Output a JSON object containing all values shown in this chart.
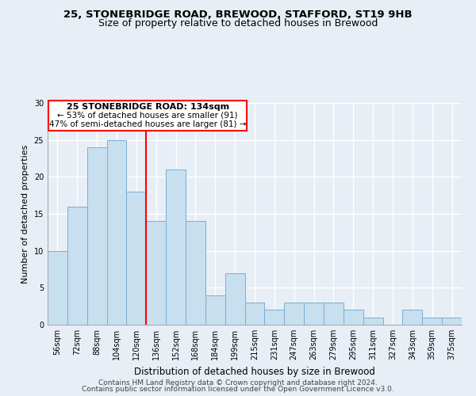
{
  "title1": "25, STONEBRIDGE ROAD, BREWOOD, STAFFORD, ST19 9HB",
  "title2": "Size of property relative to detached houses in Brewood",
  "xlabel": "Distribution of detached houses by size in Brewood",
  "ylabel": "Number of detached properties",
  "bar_color": "#c8dff0",
  "bar_edge_color": "#7aaed0",
  "background_color": "#e8eef5",
  "grid_color": "#ffffff",
  "categories": [
    "56sqm",
    "72sqm",
    "88sqm",
    "104sqm",
    "120sqm",
    "136sqm",
    "152sqm",
    "168sqm",
    "184sqm",
    "199sqm",
    "215sqm",
    "231sqm",
    "247sqm",
    "263sqm",
    "279sqm",
    "295sqm",
    "311sqm",
    "327sqm",
    "343sqm",
    "359sqm",
    "375sqm"
  ],
  "values": [
    10,
    16,
    24,
    25,
    18,
    14,
    21,
    14,
    4,
    7,
    3,
    2,
    3,
    3,
    3,
    2,
    1,
    0,
    2,
    1,
    1
  ],
  "ylim": [
    0,
    30
  ],
  "yticks": [
    0,
    5,
    10,
    15,
    20,
    25,
    30
  ],
  "red_line_index": 5,
  "annotation_title": "25 STONEBRIDGE ROAD: 134sqm",
  "annotation_line1": "← 53% of detached houses are smaller (91)",
  "annotation_line2": "47% of semi-detached houses are larger (81) →",
  "footer1": "Contains HM Land Registry data © Crown copyright and database right 2024.",
  "footer2": "Contains public sector information licensed under the Open Government Licence v3.0."
}
